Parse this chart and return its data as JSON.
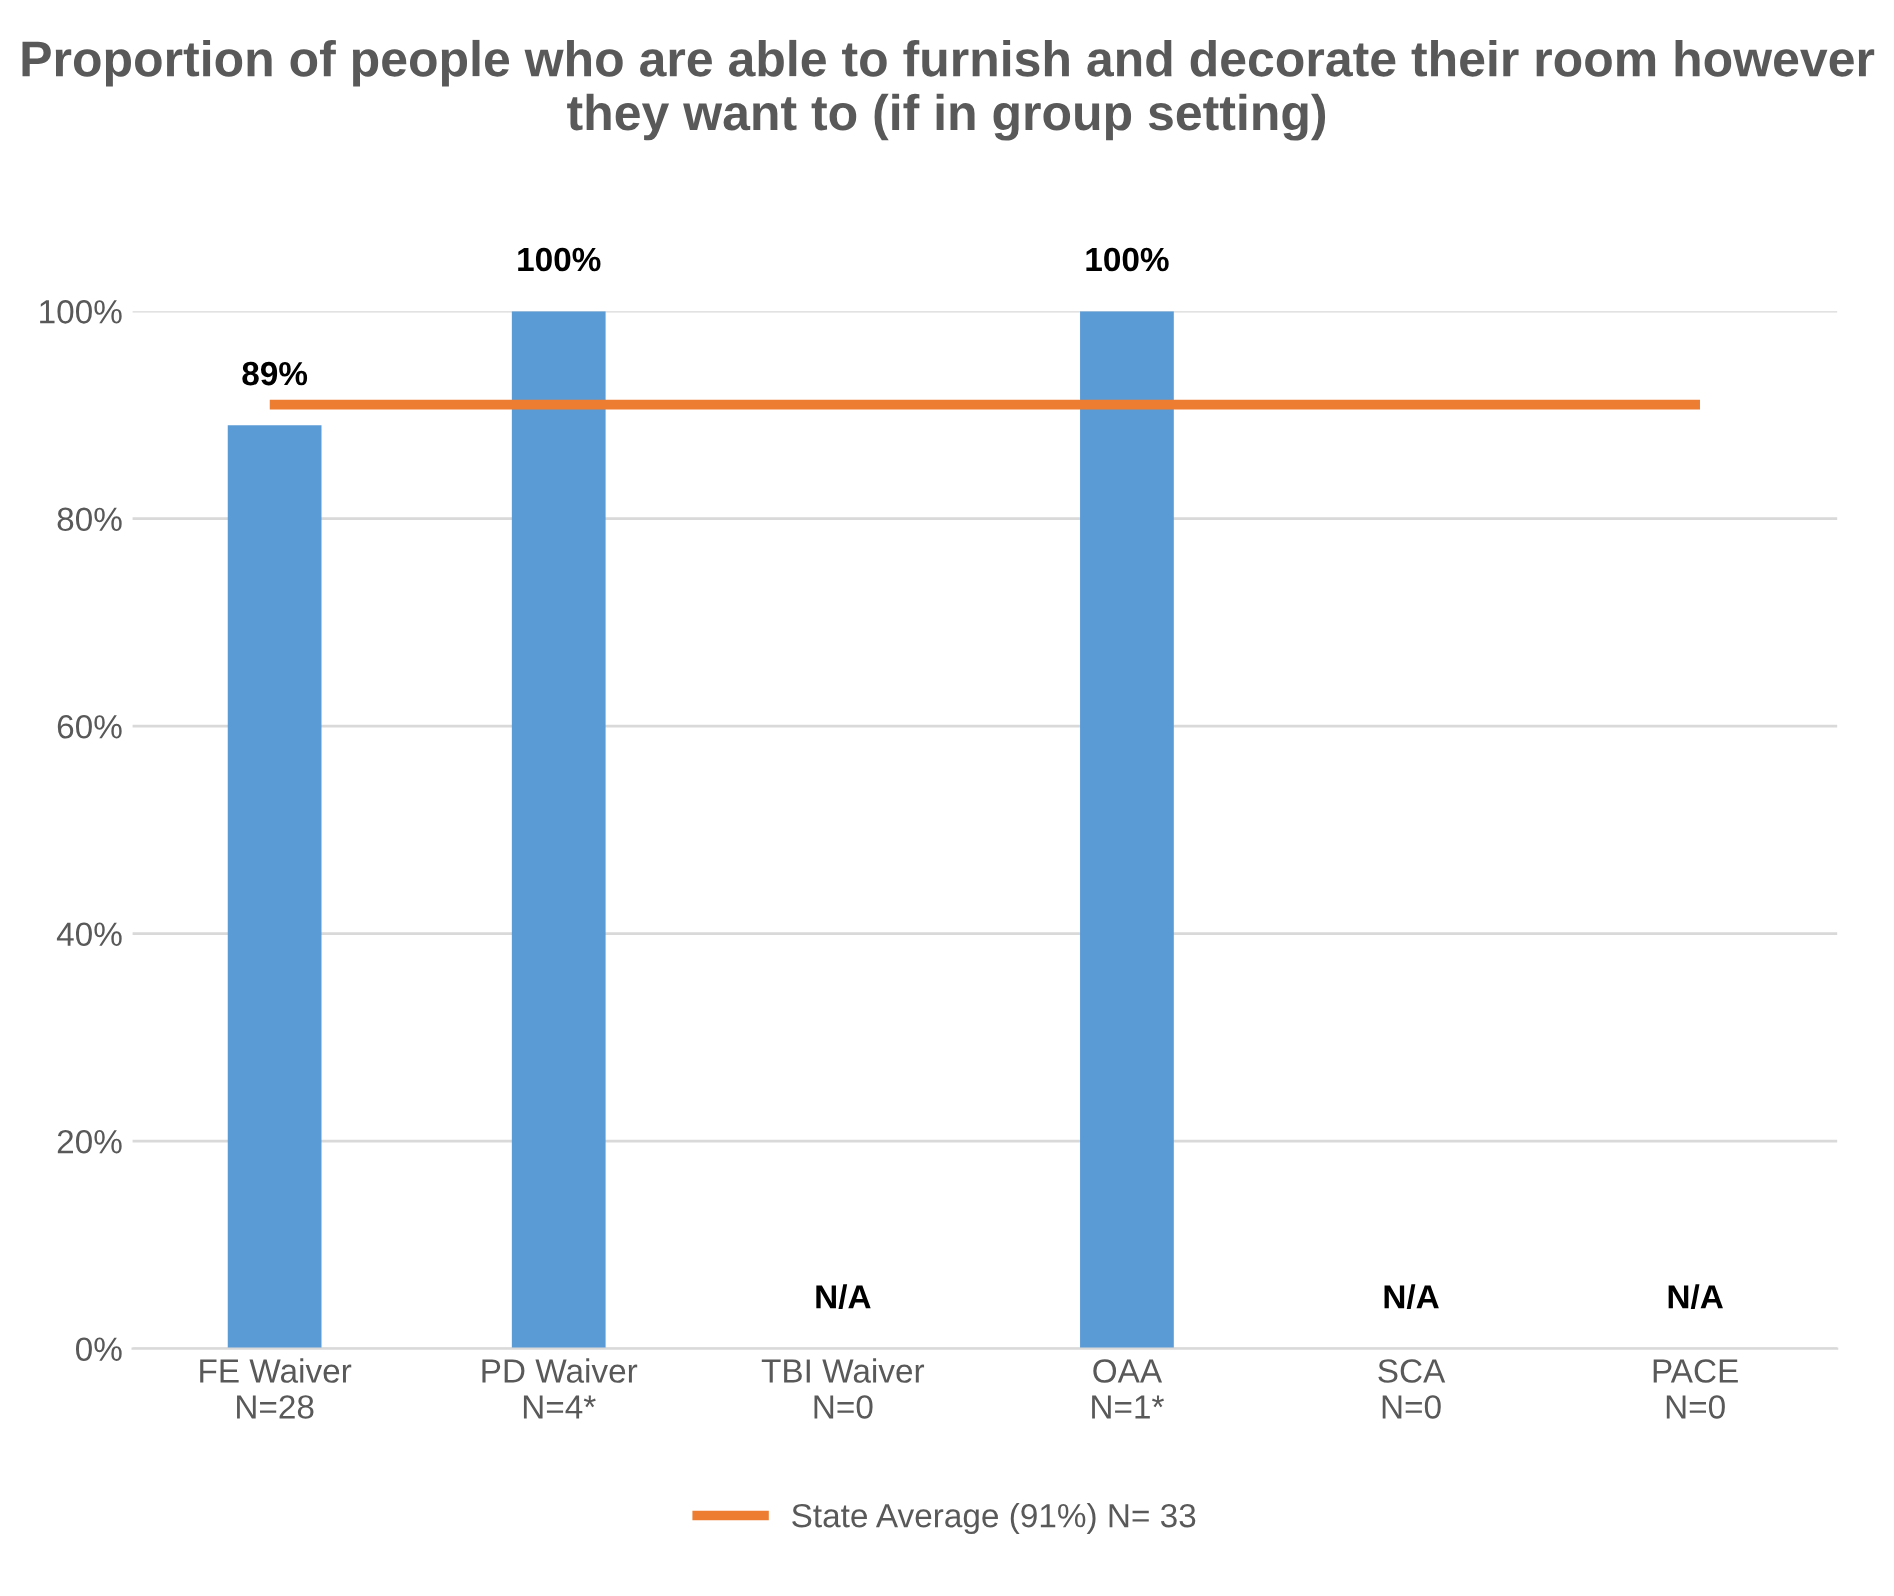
{
  "chart_data": {
    "type": "bar",
    "title": "Proportion of people who are able to furnish and decorate their room however they want to (if in group setting)",
    "categories": [
      "FE Waiver\nN=28",
      "PD Waiver\nN=4*",
      "TBI Waiver\nN=0",
      "OAA\nN=1*",
      "SCA\nN=0",
      "PACE\nN=0"
    ],
    "series": [
      {
        "color": "#5b9bd5",
        "values": [
          89,
          100,
          null,
          100,
          null,
          null
        ],
        "value_labels": [
          "89%",
          "100%",
          "N/A",
          "100%",
          "N/A",
          "N/A"
        ]
      },
      {
        "type": "line",
        "name": "State Average (91%) N= 33",
        "color": "#ed7d31",
        "values": [
          91,
          91,
          91,
          91,
          91,
          91
        ]
      }
    ],
    "ylim": [
      0,
      100
    ],
    "yticks": [
      {
        "value": 0,
        "label": "0%"
      },
      {
        "value": 20,
        "label": "20%"
      },
      {
        "value": 40,
        "label": "40%"
      },
      {
        "value": 60,
        "label": "60%"
      },
      {
        "value": 80,
        "label": "80%"
      },
      {
        "value": 100,
        "label": "100%"
      }
    ],
    "grid": "y",
    "legend": "bottom",
    "marker": "none"
  }
}
